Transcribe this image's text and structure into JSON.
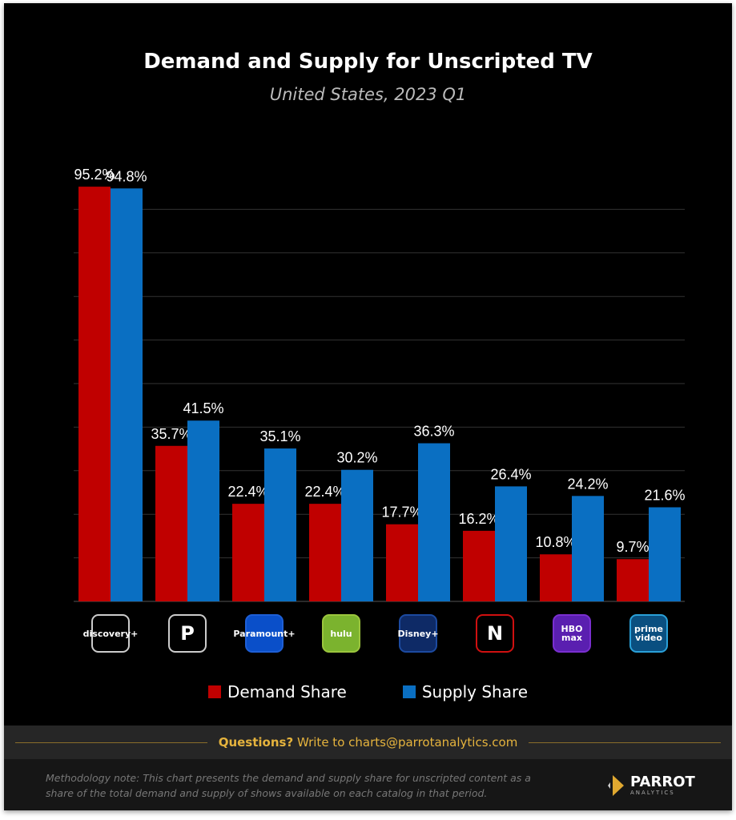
{
  "title": "Demand and Supply for Unscripted TV",
  "subtitle": "United States, 2023 Q1",
  "chart_data": {
    "type": "bar",
    "title": "Demand and Supply for Unscripted TV",
    "subtitle": "United States, 2023 Q1",
    "categories": [
      "discovery+",
      "Peacock",
      "Paramount+",
      "Hulu",
      "Disney+",
      "Netflix",
      "HBO Max",
      "Prime Video"
    ],
    "series": [
      {
        "name": "Demand Share",
        "color": "#c00000",
        "values": [
          95.2,
          35.7,
          22.4,
          22.4,
          17.7,
          16.2,
          10.8,
          9.7
        ],
        "labels": [
          "95.2%",
          "35.7%",
          "22.4%",
          "22.4%",
          "17.7%",
          "16.2%",
          "10.8%",
          "9.7%"
        ]
      },
      {
        "name": "Supply Share",
        "color": "#0a6fc2",
        "values": [
          94.8,
          41.5,
          35.1,
          30.2,
          36.3,
          26.4,
          24.2,
          21.6
        ],
        "labels": [
          "94.8%",
          "41.5%",
          "35.1%",
          "30.2%",
          "36.3%",
          "26.4%",
          "24.2%",
          "21.6%"
        ]
      }
    ],
    "ylim": [
      0,
      100
    ],
    "grid": true,
    "legend": "bottom"
  },
  "logos": [
    {
      "text": "discovery+",
      "border": "#cccccc",
      "bg": "#000000"
    },
    {
      "text": "P",
      "border": "#cccccc",
      "bg": "#000000"
    },
    {
      "text": "Paramount+",
      "border": "#1e5fd6",
      "bg": "#0a4fc9"
    },
    {
      "text": "hulu",
      "border": "#9bc53d",
      "bg": "#7bb32e"
    },
    {
      "text": "Disney+",
      "border": "#1c4aa0",
      "bg": "#0e2a66"
    },
    {
      "text": "N",
      "border": "#d01010",
      "bg": "#000000"
    },
    {
      "text": "HBO max",
      "border": "#7a2fd0",
      "bg": "#5a1fb0"
    },
    {
      "text": "prime video",
      "border": "#2aa0d8",
      "bg": "#0a4f80"
    }
  ],
  "footer": {
    "q_bold": "Questions?",
    "q_rest": " Write to charts@parrotanalytics.com",
    "note": "Methodology note: This chart presents the demand and supply share for unscripted content as a share of the total demand and supply of shows available on each catalog in that period.",
    "logo_name": "PARROT",
    "logo_sub": "ANALYTICS"
  }
}
